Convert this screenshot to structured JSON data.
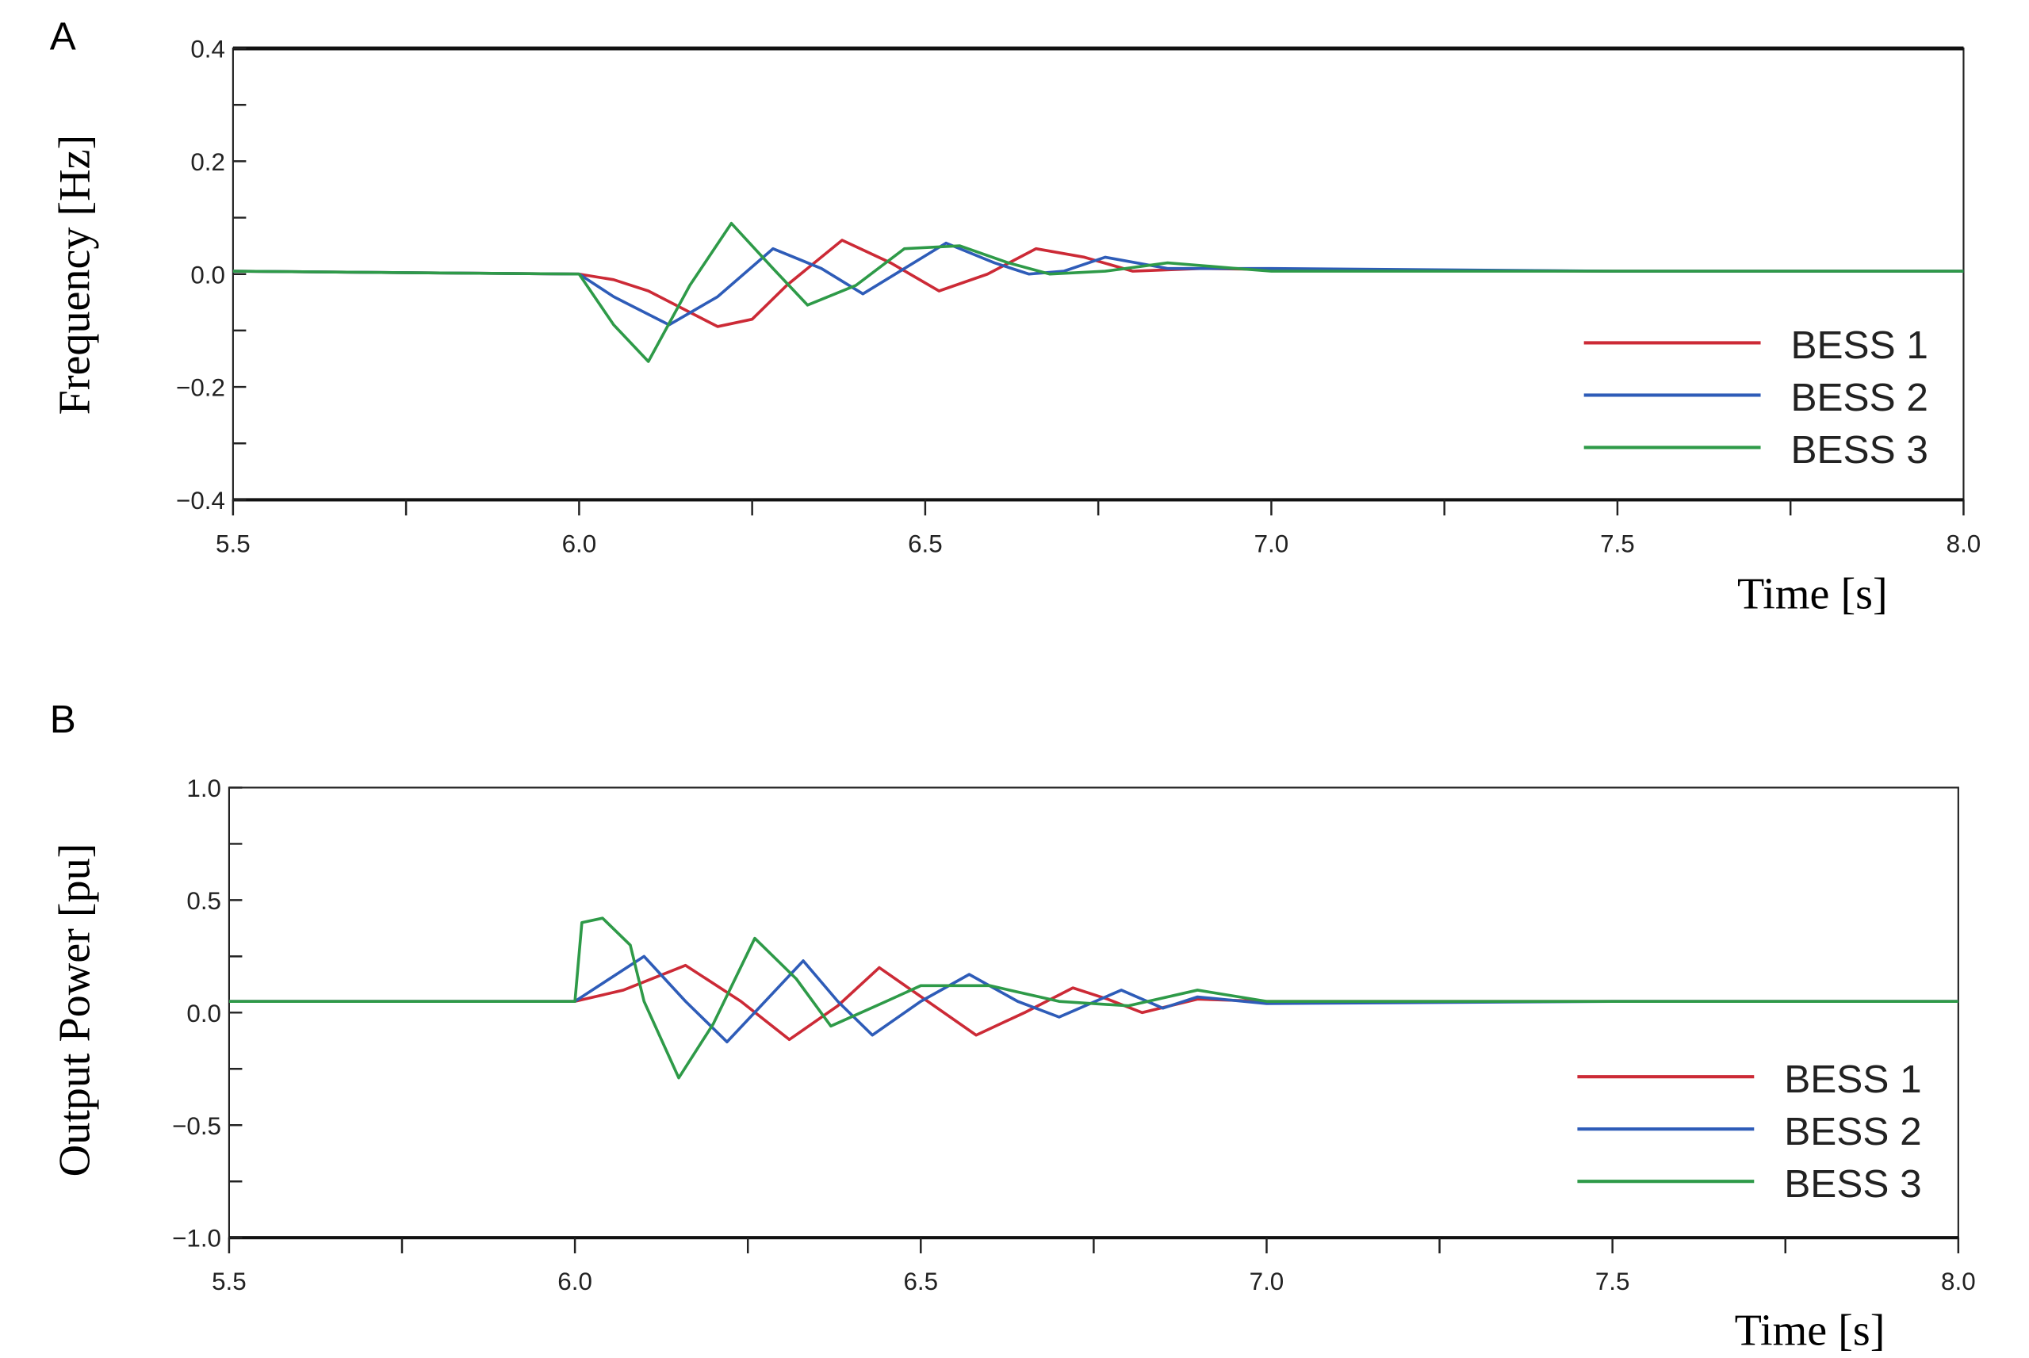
{
  "chart_data": [
    {
      "panel_label": "A",
      "type": "line",
      "xlabel": "Time [s]",
      "ylabel": "Frequency [Hz]",
      "xlim": [
        5.5,
        8.0
      ],
      "ylim": [
        -0.4,
        0.4
      ],
      "x_ticks": [
        "5.5",
        "6.0",
        "6.5",
        "7.0",
        "7.5",
        "8.0"
      ],
      "y_ticks": [
        "0.4",
        "0.2",
        "0.0",
        "−0.2",
        "−0.4"
      ],
      "grid": false,
      "legend_position": "bottom-right",
      "series": [
        {
          "name": "BESS 1",
          "color": "#cc2a36",
          "x": [
            5.5,
            6.0,
            6.05,
            6.1,
            6.2,
            6.25,
            6.3,
            6.38,
            6.45,
            6.52,
            6.59,
            6.66,
            6.73,
            6.8,
            6.9,
            7.0,
            7.5,
            8.0
          ],
          "y": [
            0.005,
            0.0,
            -0.01,
            -0.03,
            -0.093,
            -0.08,
            -0.02,
            0.06,
            0.02,
            -0.03,
            0.0,
            0.045,
            0.03,
            0.005,
            0.01,
            0.008,
            0.005,
            0.005
          ]
        },
        {
          "name": "BESS 2",
          "color": "#2e5cb8",
          "x": [
            5.5,
            6.0,
            6.05,
            6.13,
            6.2,
            6.28,
            6.35,
            6.41,
            6.47,
            6.53,
            6.6,
            6.65,
            6.7,
            6.76,
            6.85,
            7.0,
            7.5,
            8.0
          ],
          "y": [
            0.005,
            0.0,
            -0.04,
            -0.09,
            -0.04,
            0.045,
            0.01,
            -0.035,
            0.01,
            0.055,
            0.02,
            0.0,
            0.005,
            0.03,
            0.01,
            0.01,
            0.005,
            0.005
          ]
        },
        {
          "name": "BESS 3",
          "color": "#2e9a48",
          "x": [
            5.5,
            6.0,
            6.05,
            6.1,
            6.16,
            6.22,
            6.28,
            6.33,
            6.4,
            6.47,
            6.55,
            6.62,
            6.68,
            6.76,
            6.85,
            6.95,
            7.0,
            7.5,
            8.0
          ],
          "y": [
            0.005,
            0.0,
            -0.09,
            -0.155,
            -0.02,
            0.09,
            0.01,
            -0.055,
            -0.02,
            0.045,
            0.05,
            0.02,
            0.0,
            0.005,
            0.02,
            0.01,
            0.005,
            0.005,
            0.005
          ]
        }
      ]
    },
    {
      "panel_label": "B",
      "type": "line",
      "xlabel": "Time [s]",
      "ylabel": "Output Power [pu]",
      "xlim": [
        5.5,
        8.0
      ],
      "ylim": [
        -1.0,
        1.0
      ],
      "x_ticks": [
        "5.5",
        "6.0",
        "6.5",
        "7.0",
        "7.5",
        "8.0"
      ],
      "y_ticks": [
        "1.0",
        "0.5",
        "0.0",
        "−0.5",
        "−1.0"
      ],
      "grid": false,
      "legend_position": "bottom-right",
      "series": [
        {
          "name": "BESS 1",
          "color": "#cc2a36",
          "x": [
            5.5,
            6.0,
            6.07,
            6.16,
            6.24,
            6.31,
            6.38,
            6.44,
            6.51,
            6.58,
            6.65,
            6.72,
            6.77,
            6.82,
            6.9,
            7.0,
            7.5,
            8.0
          ],
          "y": [
            0.05,
            0.05,
            0.1,
            0.21,
            0.05,
            -0.12,
            0.03,
            0.2,
            0.05,
            -0.1,
            0.0,
            0.11,
            0.06,
            0.0,
            0.06,
            0.05,
            0.05,
            0.05
          ]
        },
        {
          "name": "BESS 2",
          "color": "#2e5cb8",
          "x": [
            5.5,
            6.0,
            6.1,
            6.16,
            6.22,
            6.33,
            6.38,
            6.43,
            6.5,
            6.57,
            6.64,
            6.7,
            6.79,
            6.85,
            6.9,
            7.0,
            7.5,
            8.0
          ],
          "y": [
            0.05,
            0.05,
            0.25,
            0.05,
            -0.13,
            0.23,
            0.05,
            -0.1,
            0.05,
            0.17,
            0.05,
            -0.02,
            0.1,
            0.02,
            0.07,
            0.04,
            0.05,
            0.05
          ]
        },
        {
          "name": "BESS 3",
          "color": "#2e9a48",
          "x": [
            5.5,
            6.0,
            6.01,
            6.04,
            6.08,
            6.1,
            6.15,
            6.2,
            6.26,
            6.32,
            6.37,
            6.45,
            6.5,
            6.6,
            6.7,
            6.8,
            6.9,
            7.0,
            7.5,
            8.0
          ],
          "y": [
            0.05,
            0.05,
            0.4,
            0.42,
            0.3,
            0.05,
            -0.29,
            -0.05,
            0.33,
            0.15,
            -0.06,
            0.05,
            0.12,
            0.12,
            0.05,
            0.03,
            0.1,
            0.05,
            0.05,
            0.05
          ]
        }
      ]
    }
  ]
}
